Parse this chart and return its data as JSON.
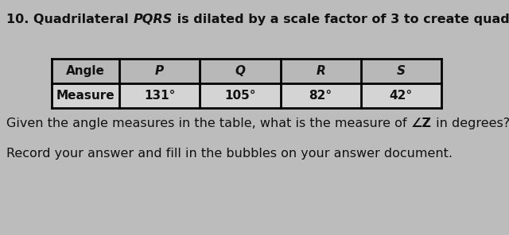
{
  "bg_color": "#bcbcbc",
  "text_color": "#111111",
  "title_fontsize": 11.5,
  "table_fontsize": 11,
  "body_fontsize": 11.5,
  "table_headers": [
    "Angle",
    "P",
    "Q",
    "R",
    "S"
  ],
  "table_row_label": "Measure",
  "table_values": [
    "131°",
    "105°",
    "82°",
    "42°"
  ],
  "answer_line": "Record your answer and fill in the bubbles on your answer document."
}
